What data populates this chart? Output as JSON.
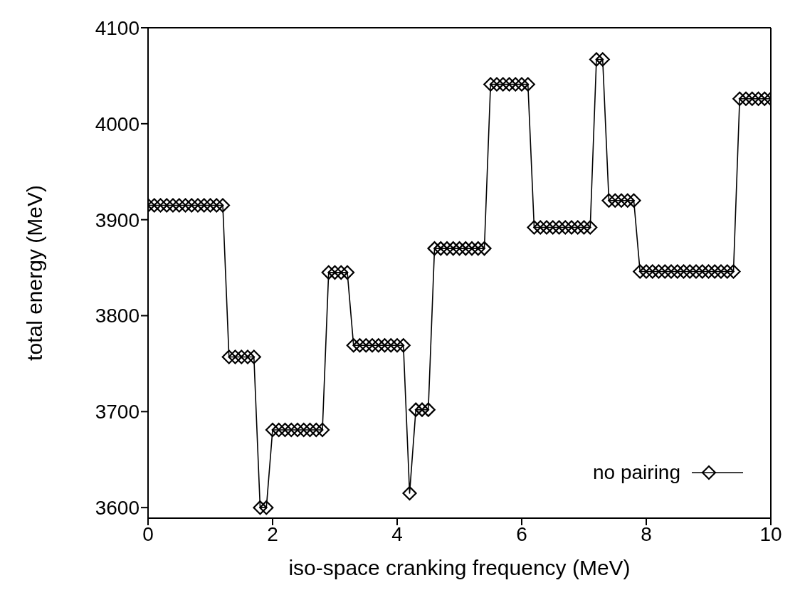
{
  "chart_data": {
    "type": "line",
    "xlabel": "iso-space cranking frequency (MeV)",
    "ylabel": "total energy (MeV)",
    "x": [
      0,
      0.1,
      0.2,
      0.3,
      0.4,
      0.5,
      0.6,
      0.7,
      0.8,
      0.9,
      1,
      1.1,
      1.2,
      1.3,
      1.4,
      1.5,
      1.6,
      1.7,
      1.8,
      1.9,
      2,
      2.1,
      2.2,
      2.3,
      2.4,
      2.5,
      2.6,
      2.7,
      2.8,
      2.9,
      3,
      3.1,
      3.2,
      3.3,
      3.4,
      3.5,
      3.6,
      3.7,
      3.8,
      3.9,
      4,
      4.1,
      4.2,
      4.3,
      4.4,
      4.5,
      4.6,
      4.7,
      4.8,
      4.9,
      5,
      5.1,
      5.2,
      5.3,
      5.4,
      5.5,
      5.6,
      5.7,
      5.8,
      5.9,
      6,
      6.1,
      6.2,
      6.3,
      6.4,
      6.5,
      6.6,
      6.7,
      6.8,
      6.9,
      7,
      7.1,
      7.2,
      7.3,
      7.4,
      7.5,
      7.6,
      7.7,
      7.8,
      7.9,
      8,
      8.1,
      8.2,
      8.3,
      8.4,
      8.5,
      8.6,
      8.7,
      8.8,
      8.9,
      9,
      9.1,
      9.2,
      9.3,
      9.4,
      9.5,
      9.6,
      9.7,
      9.8,
      9.9,
      10
    ],
    "series": [
      {
        "name": "no pairing",
        "color": "#000000",
        "values": [
          3915,
          3915,
          3915,
          3915,
          3915,
          3915,
          3915,
          3915,
          3915,
          3915,
          3915,
          3915,
          3915,
          3757,
          3757,
          3757,
          3757,
          3757,
          3600,
          3600,
          3681,
          3681,
          3681,
          3681,
          3681,
          3681,
          3681,
          3681,
          3681,
          3845,
          3845,
          3845,
          3845,
          3769,
          3769,
          3769,
          3769,
          3769,
          3769,
          3769,
          3769,
          3769,
          3615,
          3702,
          3702,
          3702,
          3870,
          3870,
          3870,
          3870,
          3870,
          3870,
          3870,
          3870,
          3870,
          4041,
          4041,
          4041,
          4041,
          4041,
          4041,
          4041,
          3892,
          3892,
          3892,
          3892,
          3892,
          3892,
          3892,
          3892,
          3892,
          3892,
          4067,
          4067,
          3920,
          3920,
          3920,
          3920,
          3920,
          3846,
          3846,
          3846,
          3846,
          3846,
          3846,
          3846,
          3846,
          3846,
          3846,
          3846,
          3846,
          3846,
          3846,
          3846,
          3846,
          4026,
          4026,
          4026,
          4026,
          4026,
          4026
        ]
      }
    ],
    "xlim": [
      0,
      10
    ],
    "xticks": [
      0,
      2,
      4,
      6,
      8,
      10
    ],
    "ylim": [
      3589,
      4100
    ],
    "yticks": [
      3600,
      3700,
      3800,
      3900,
      4000,
      4100
    ],
    "grid": false,
    "legend": "bottom right",
    "marker": "diamond",
    "line_style": "solid"
  }
}
